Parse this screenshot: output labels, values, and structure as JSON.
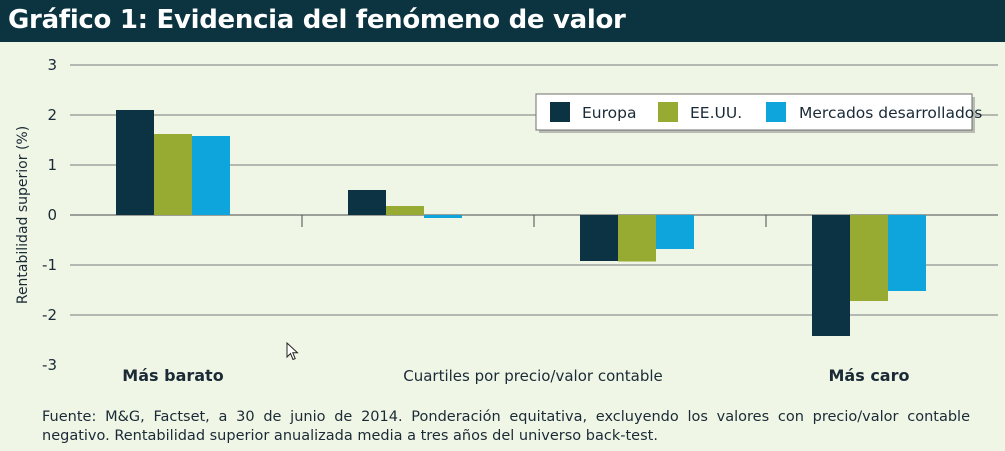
{
  "header": {
    "title": "Gráfico 1: Evidencia del fenómeno de valor"
  },
  "chart_data": {
    "type": "bar",
    "title": "Gráfico 1: Evidencia del fenómeno de valor",
    "categories": [
      "Más barato",
      "",
      "",
      "Más caro"
    ],
    "xlabel": "Cuartiles por precio/valor contable",
    "ylabel": "Rentabilidad superior (%)",
    "ylim": [
      -3,
      3
    ],
    "yticks": [
      3,
      2,
      1,
      0,
      -1,
      -2,
      -3
    ],
    "grid": true,
    "legend_position": "top-right",
    "series": [
      {
        "name": "Europa",
        "color": "#0c3344",
        "values": [
          2.1,
          0.5,
          -0.92,
          -2.42
        ]
      },
      {
        "name": "EE.UU.",
        "color": "#97ab32",
        "values": [
          1.62,
          0.18,
          -0.93,
          -1.72
        ]
      },
      {
        "name": "Mercados desarrollados",
        "color": "#0ea5dc",
        "values": [
          1.58,
          -0.06,
          -0.68,
          -1.52
        ]
      }
    ]
  },
  "footer": {
    "source": "Fuente: M&G, Factset, a 30 de junio de 2014. Ponderación equitativa, excluyendo los valores con precio/valor contable negativo. Rentabilidad superior anualizada media a tres años del universo back-test."
  }
}
